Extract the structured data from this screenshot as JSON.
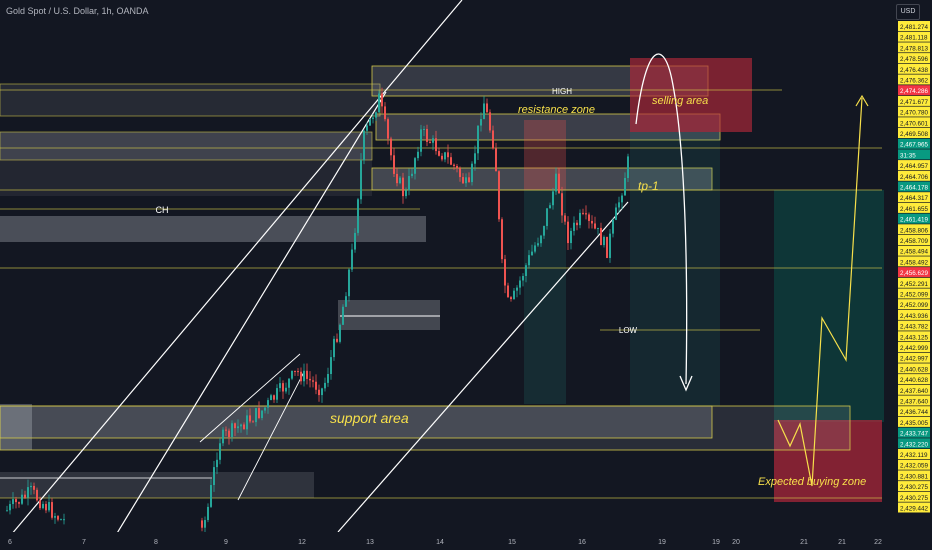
{
  "chart_title": "Gold Spot / U.S. Dollar, 1h, OANDA",
  "currency": "USD",
  "colors": {
    "background": "#131722",
    "up": "#26a69a",
    "down": "#ef5350",
    "zone_fill": "#b2b5be",
    "zone_border": "#d4c94a",
    "annotation": "#f7e04b",
    "line": "#ffffff",
    "sell_box": "#b2283a",
    "buy_box_teal": "#0e3a3a"
  },
  "chart_data": {
    "type": "candlestick",
    "title": "Gold Spot / U.S. Dollar, 1h, OANDA",
    "y_axis": {
      "unit": "USD",
      "tick_labels": [
        "2,481.274",
        "2,481.118",
        "2,478.813",
        "2,478.596",
        "2,476.438",
        "2,476.362",
        "2,474.286",
        "2,471.677",
        "2,470.780",
        "2,470.601",
        "2,469.508",
        "2,467.965",
        "31:35",
        "2,464.957",
        "2,464.706",
        "2,464.178",
        "2,464.317",
        "2,461.655",
        "2,461.419",
        "2,458.806",
        "2,458.709",
        "2,458.494",
        "2,458.492",
        "2,456.629",
        "2,452.291",
        "2,452.099",
        "2,452.099",
        "2,443.936",
        "2,443.782",
        "2,443.125",
        "2,442.999",
        "2,442.997",
        "2,440.628",
        "2,440.628",
        "2,437.640",
        "2,437.640",
        "2,436.744",
        "2,435.005",
        "2,433.747",
        "2,432.220",
        "2,432.119",
        "2,432.059",
        "2,430.881",
        "2,430.275",
        "2,430.275",
        "2,429.442"
      ]
    },
    "x_axis": {
      "tick_labels": [
        "6",
        "7",
        "8",
        "9",
        "12",
        "13",
        "14",
        "15",
        "16",
        "19",
        "19",
        "20",
        "21",
        "21",
        "22"
      ]
    },
    "annotations": {
      "high": "HIGH",
      "low": "LOW",
      "ch": "CH",
      "resistance": "resistance zone",
      "selling": "selling area",
      "tp": "tp-1",
      "support": "support area",
      "buying": "Expected buying zone"
    }
  }
}
